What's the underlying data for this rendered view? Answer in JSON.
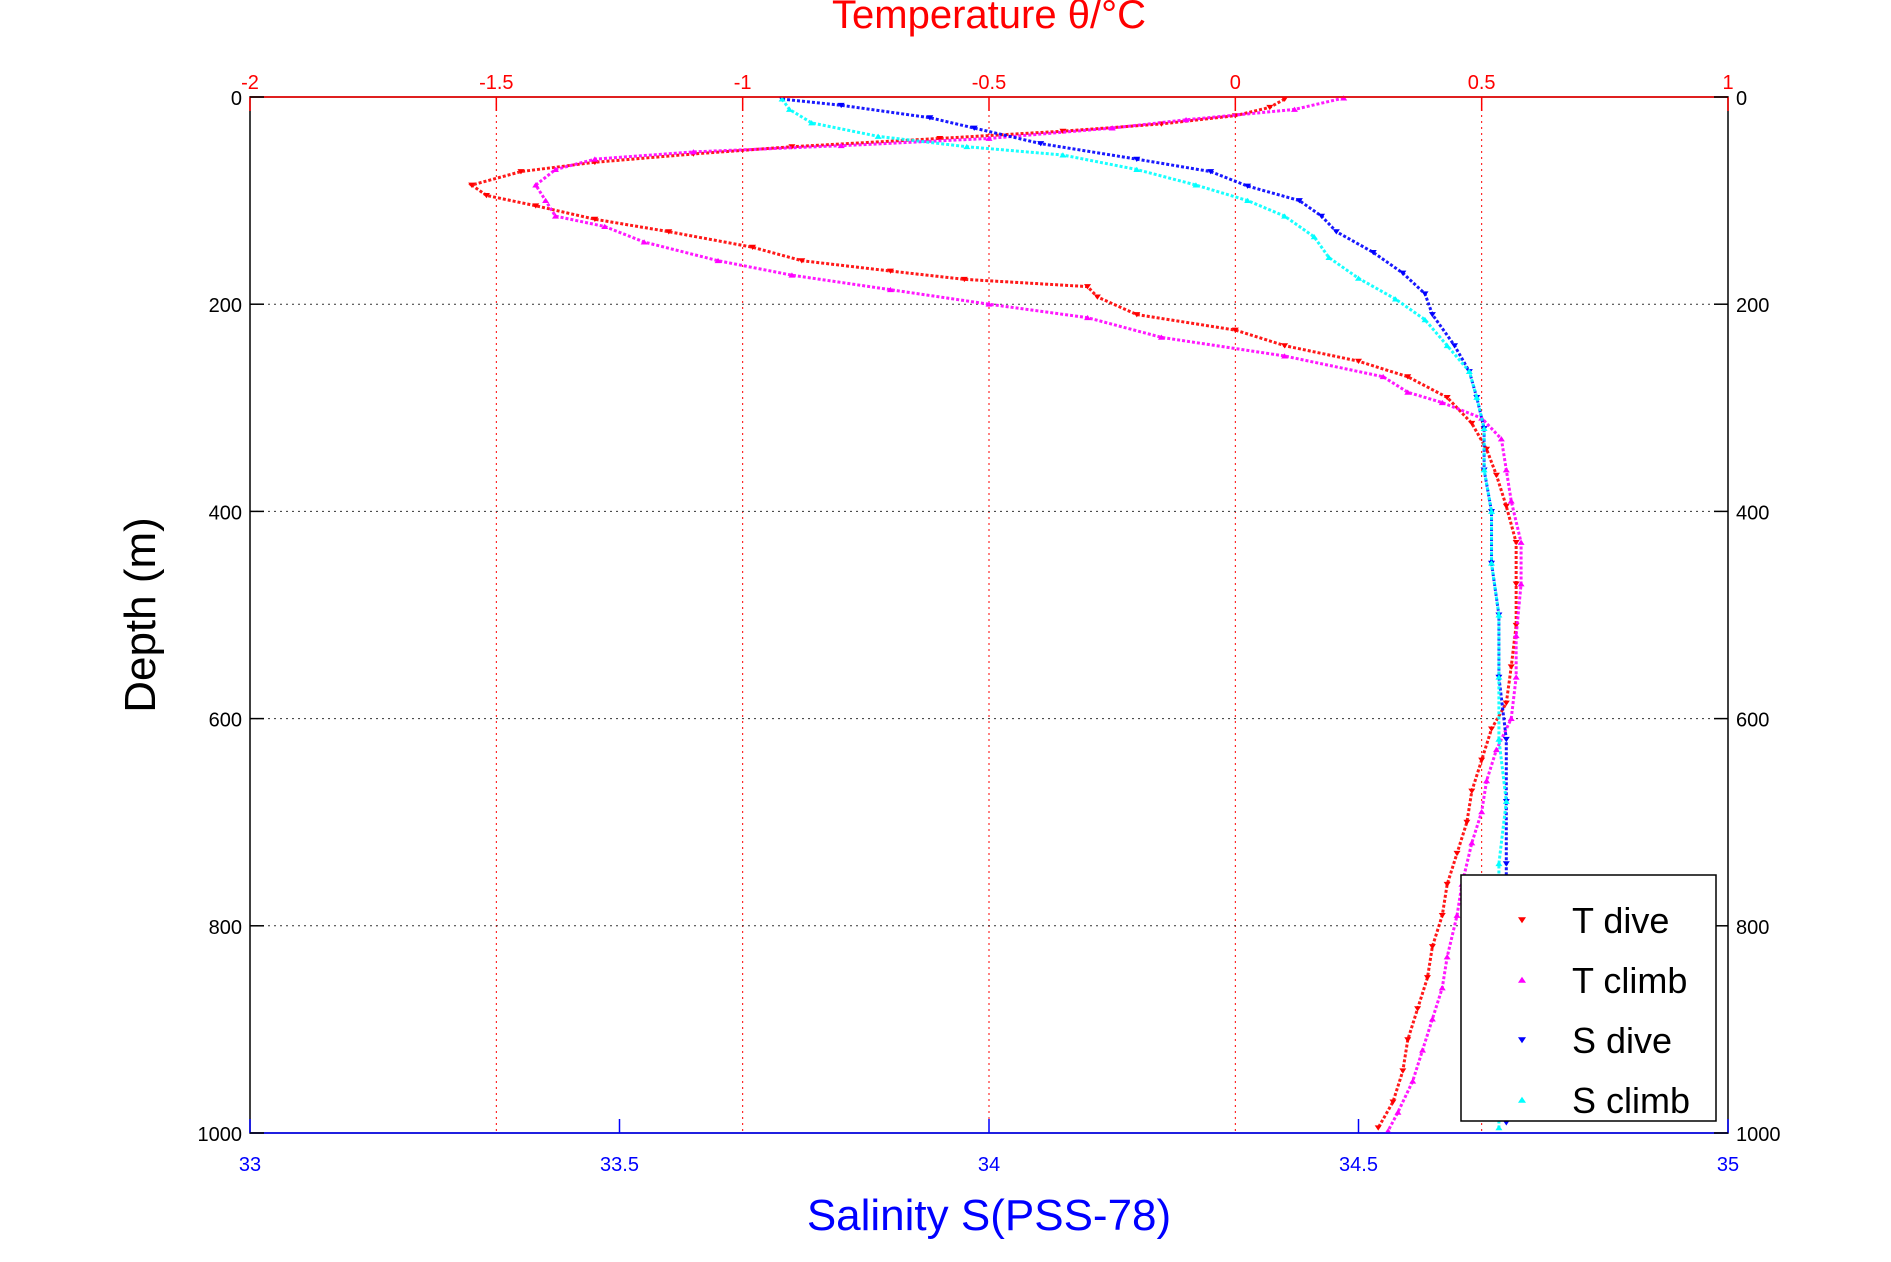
{
  "chart_data": {
    "type": "scatter",
    "title": "Temperature θ/°C",
    "top_axis": {
      "label": "Temperature θ/°C",
      "range": [
        -2,
        1
      ],
      "ticks": [
        -2,
        -1.5,
        -1,
        -0.5,
        0,
        0.5,
        1
      ],
      "tick_labels": [
        "-2",
        "-1.5",
        "-1",
        "-0.5",
        "0",
        "0.5",
        "1"
      ],
      "color": "#ff0000"
    },
    "bottom_axis": {
      "label": "Salinity S(PSS-78)",
      "range": [
        33,
        35
      ],
      "ticks": [
        33,
        33.5,
        34,
        34.5,
        35
      ],
      "tick_labels": [
        "33",
        "33.5",
        "34",
        "34.5",
        "35"
      ],
      "color": "#0000ff"
    },
    "y_axis": {
      "label": "Depth (m)",
      "range": [
        0,
        1000
      ],
      "reversed": true,
      "ticks": [
        0,
        200,
        400,
        600,
        800,
        1000
      ],
      "tick_labels": [
        "0",
        "200",
        "400",
        "600",
        "800",
        "1000"
      ]
    },
    "grid": true,
    "legend_position": "bottom-right",
    "series": [
      {
        "name": "T dive",
        "axis": "top",
        "color": "#ff0000",
        "marker": "triangle-down",
        "points": [
          [
            0.1,
            2
          ],
          [
            0.07,
            10
          ],
          [
            0.0,
            18
          ],
          [
            -0.15,
            26
          ],
          [
            -0.35,
            33
          ],
          [
            -0.6,
            40
          ],
          [
            -0.9,
            48
          ],
          [
            -1.1,
            55
          ],
          [
            -1.3,
            63
          ],
          [
            -1.45,
            72
          ],
          [
            -1.55,
            85
          ],
          [
            -1.52,
            95
          ],
          [
            -1.42,
            105
          ],
          [
            -1.3,
            118
          ],
          [
            -1.15,
            130
          ],
          [
            -0.98,
            145
          ],
          [
            -0.88,
            158
          ],
          [
            -0.7,
            168
          ],
          [
            -0.55,
            176
          ],
          [
            -0.3,
            183
          ],
          [
            -0.28,
            193
          ],
          [
            -0.2,
            210
          ],
          [
            0.0,
            225
          ],
          [
            0.1,
            240
          ],
          [
            0.25,
            255
          ],
          [
            0.35,
            270
          ],
          [
            0.43,
            290
          ],
          [
            0.48,
            315
          ],
          [
            0.51,
            340
          ],
          [
            0.53,
            365
          ],
          [
            0.55,
            395
          ],
          [
            0.57,
            430
          ],
          [
            0.57,
            470
          ],
          [
            0.57,
            510
          ],
          [
            0.56,
            550
          ],
          [
            0.55,
            585
          ],
          [
            0.52,
            610
          ],
          [
            0.5,
            640
          ],
          [
            0.48,
            670
          ],
          [
            0.47,
            700
          ],
          [
            0.45,
            730
          ],
          [
            0.43,
            760
          ],
          [
            0.42,
            790
          ],
          [
            0.4,
            820
          ],
          [
            0.39,
            850
          ],
          [
            0.37,
            880
          ],
          [
            0.35,
            910
          ],
          [
            0.34,
            940
          ],
          [
            0.32,
            970
          ],
          [
            0.29,
            995
          ]
        ]
      },
      {
        "name": "T climb",
        "axis": "top",
        "color": "#ff00ff",
        "marker": "triangle-up",
        "points": [
          [
            0.22,
            1
          ],
          [
            0.12,
            12
          ],
          [
            -0.1,
            22
          ],
          [
            -0.25,
            30
          ],
          [
            -0.5,
            40
          ],
          [
            -0.8,
            47
          ],
          [
            -1.1,
            53
          ],
          [
            -1.3,
            60
          ],
          [
            -1.38,
            70
          ],
          [
            -1.42,
            85
          ],
          [
            -1.4,
            100
          ],
          [
            -1.38,
            115
          ],
          [
            -1.28,
            125
          ],
          [
            -1.2,
            140
          ],
          [
            -1.05,
            158
          ],
          [
            -0.9,
            172
          ],
          [
            -0.7,
            186
          ],
          [
            -0.5,
            200
          ],
          [
            -0.3,
            213
          ],
          [
            -0.15,
            232
          ],
          [
            0.1,
            250
          ],
          [
            0.3,
            270
          ],
          [
            0.35,
            285
          ],
          [
            0.42,
            295
          ],
          [
            0.5,
            310
          ],
          [
            0.54,
            330
          ],
          [
            0.55,
            360
          ],
          [
            0.56,
            390
          ],
          [
            0.58,
            430
          ],
          [
            0.58,
            470
          ],
          [
            0.57,
            520
          ],
          [
            0.57,
            560
          ],
          [
            0.56,
            600
          ],
          [
            0.53,
            630
          ],
          [
            0.51,
            660
          ],
          [
            0.5,
            690
          ],
          [
            0.48,
            720
          ],
          [
            0.46,
            760
          ],
          [
            0.45,
            790
          ],
          [
            0.43,
            830
          ],
          [
            0.42,
            860
          ],
          [
            0.4,
            890
          ],
          [
            0.38,
            920
          ],
          [
            0.36,
            950
          ],
          [
            0.33,
            980
          ],
          [
            0.31,
            998
          ]
        ]
      },
      {
        "name": "S dive",
        "axis": "bottom",
        "color": "#0000ff",
        "marker": "triangle-down",
        "points": [
          [
            33.72,
            2
          ],
          [
            33.8,
            8
          ],
          [
            33.92,
            20
          ],
          [
            33.98,
            30
          ],
          [
            34.07,
            45
          ],
          [
            34.2,
            60
          ],
          [
            34.3,
            72
          ],
          [
            34.35,
            86
          ],
          [
            34.42,
            100
          ],
          [
            34.45,
            115
          ],
          [
            34.47,
            130
          ],
          [
            34.52,
            150
          ],
          [
            34.56,
            170
          ],
          [
            34.59,
            190
          ],
          [
            34.6,
            210
          ],
          [
            34.63,
            240
          ],
          [
            34.65,
            265
          ],
          [
            34.66,
            290
          ],
          [
            34.67,
            320
          ],
          [
            34.67,
            360
          ],
          [
            34.68,
            400
          ],
          [
            34.68,
            450
          ],
          [
            34.69,
            500
          ],
          [
            34.69,
            560
          ],
          [
            34.7,
            620
          ],
          [
            34.7,
            680
          ],
          [
            34.7,
            740
          ],
          [
            34.7,
            800
          ],
          [
            34.7,
            860
          ],
          [
            34.7,
            920
          ],
          [
            34.7,
            990
          ]
        ]
      },
      {
        "name": "S climb",
        "axis": "bottom",
        "color": "#00ffff",
        "marker": "triangle-up",
        "points": [
          [
            33.72,
            2
          ],
          [
            33.73,
            12
          ],
          [
            33.76,
            25
          ],
          [
            33.85,
            38
          ],
          [
            33.97,
            48
          ],
          [
            34.1,
            56
          ],
          [
            34.2,
            70
          ],
          [
            34.28,
            85
          ],
          [
            34.35,
            100
          ],
          [
            34.4,
            115
          ],
          [
            34.44,
            135
          ],
          [
            34.46,
            155
          ],
          [
            34.5,
            175
          ],
          [
            34.55,
            195
          ],
          [
            34.59,
            215
          ],
          [
            34.62,
            240
          ],
          [
            34.65,
            265
          ],
          [
            34.66,
            290
          ],
          [
            34.67,
            320
          ],
          [
            34.67,
            360
          ],
          [
            34.68,
            400
          ],
          [
            34.68,
            450
          ],
          [
            34.69,
            500
          ],
          [
            34.69,
            560
          ],
          [
            34.69,
            620
          ],
          [
            34.7,
            680
          ],
          [
            34.69,
            740
          ],
          [
            34.69,
            800
          ],
          [
            34.69,
            860
          ],
          [
            34.69,
            920
          ],
          [
            34.69,
            995
          ]
        ]
      }
    ]
  }
}
